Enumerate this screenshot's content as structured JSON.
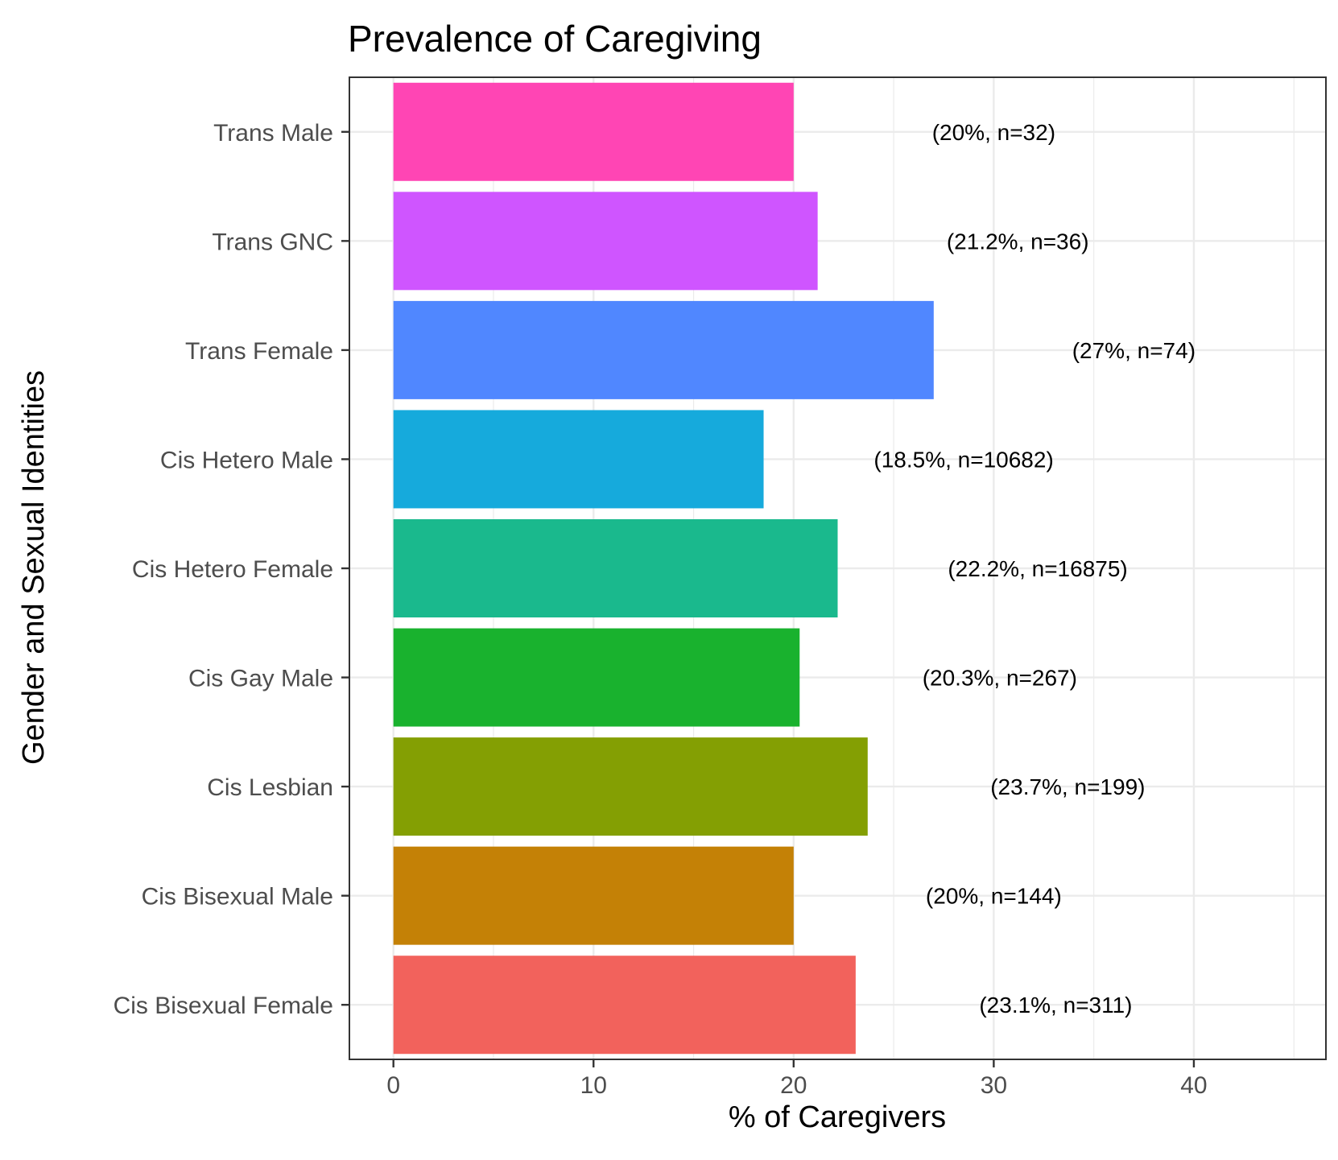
{
  "chart_data": {
    "type": "bar",
    "orientation": "horizontal",
    "title": "Prevalence of Caregiving",
    "xlabel": "% of Caregivers",
    "ylabel": "Gender and Sexual Identities",
    "xlim": [
      -2.2,
      46.6
    ],
    "x_ticks": [
      0,
      10,
      20,
      30,
      40
    ],
    "grid": true,
    "legend": "none",
    "categories": [
      "Trans Male",
      "Trans GNC",
      "Trans Female",
      "Cis Hetero Male",
      "Cis Hetero Female",
      "Cis Gay Male",
      "Cis Lesbian",
      "Cis Bisexual Male",
      "Cis Bisexual Female"
    ],
    "values": [
      20,
      21.2,
      27,
      18.5,
      22.2,
      20.3,
      23.7,
      20,
      23.1
    ],
    "labels": [
      "(20%, n=32)",
      "(21.2%, n=36)",
      "(27%, n=74)",
      "(18.5%, n=10682)",
      "(22.2%, n=16875)",
      "(20.3%, n=267)",
      "(23.7%, n=199)",
      "(20%, n=144)",
      "(23.1%, n=311)"
    ],
    "colors": [
      "#FF45B4",
      "#CF55FF",
      "#5087FF",
      "#16AADC",
      "#1AB98D",
      "#19B22E",
      "#849F03",
      "#C48106",
      "#F2625C"
    ]
  }
}
